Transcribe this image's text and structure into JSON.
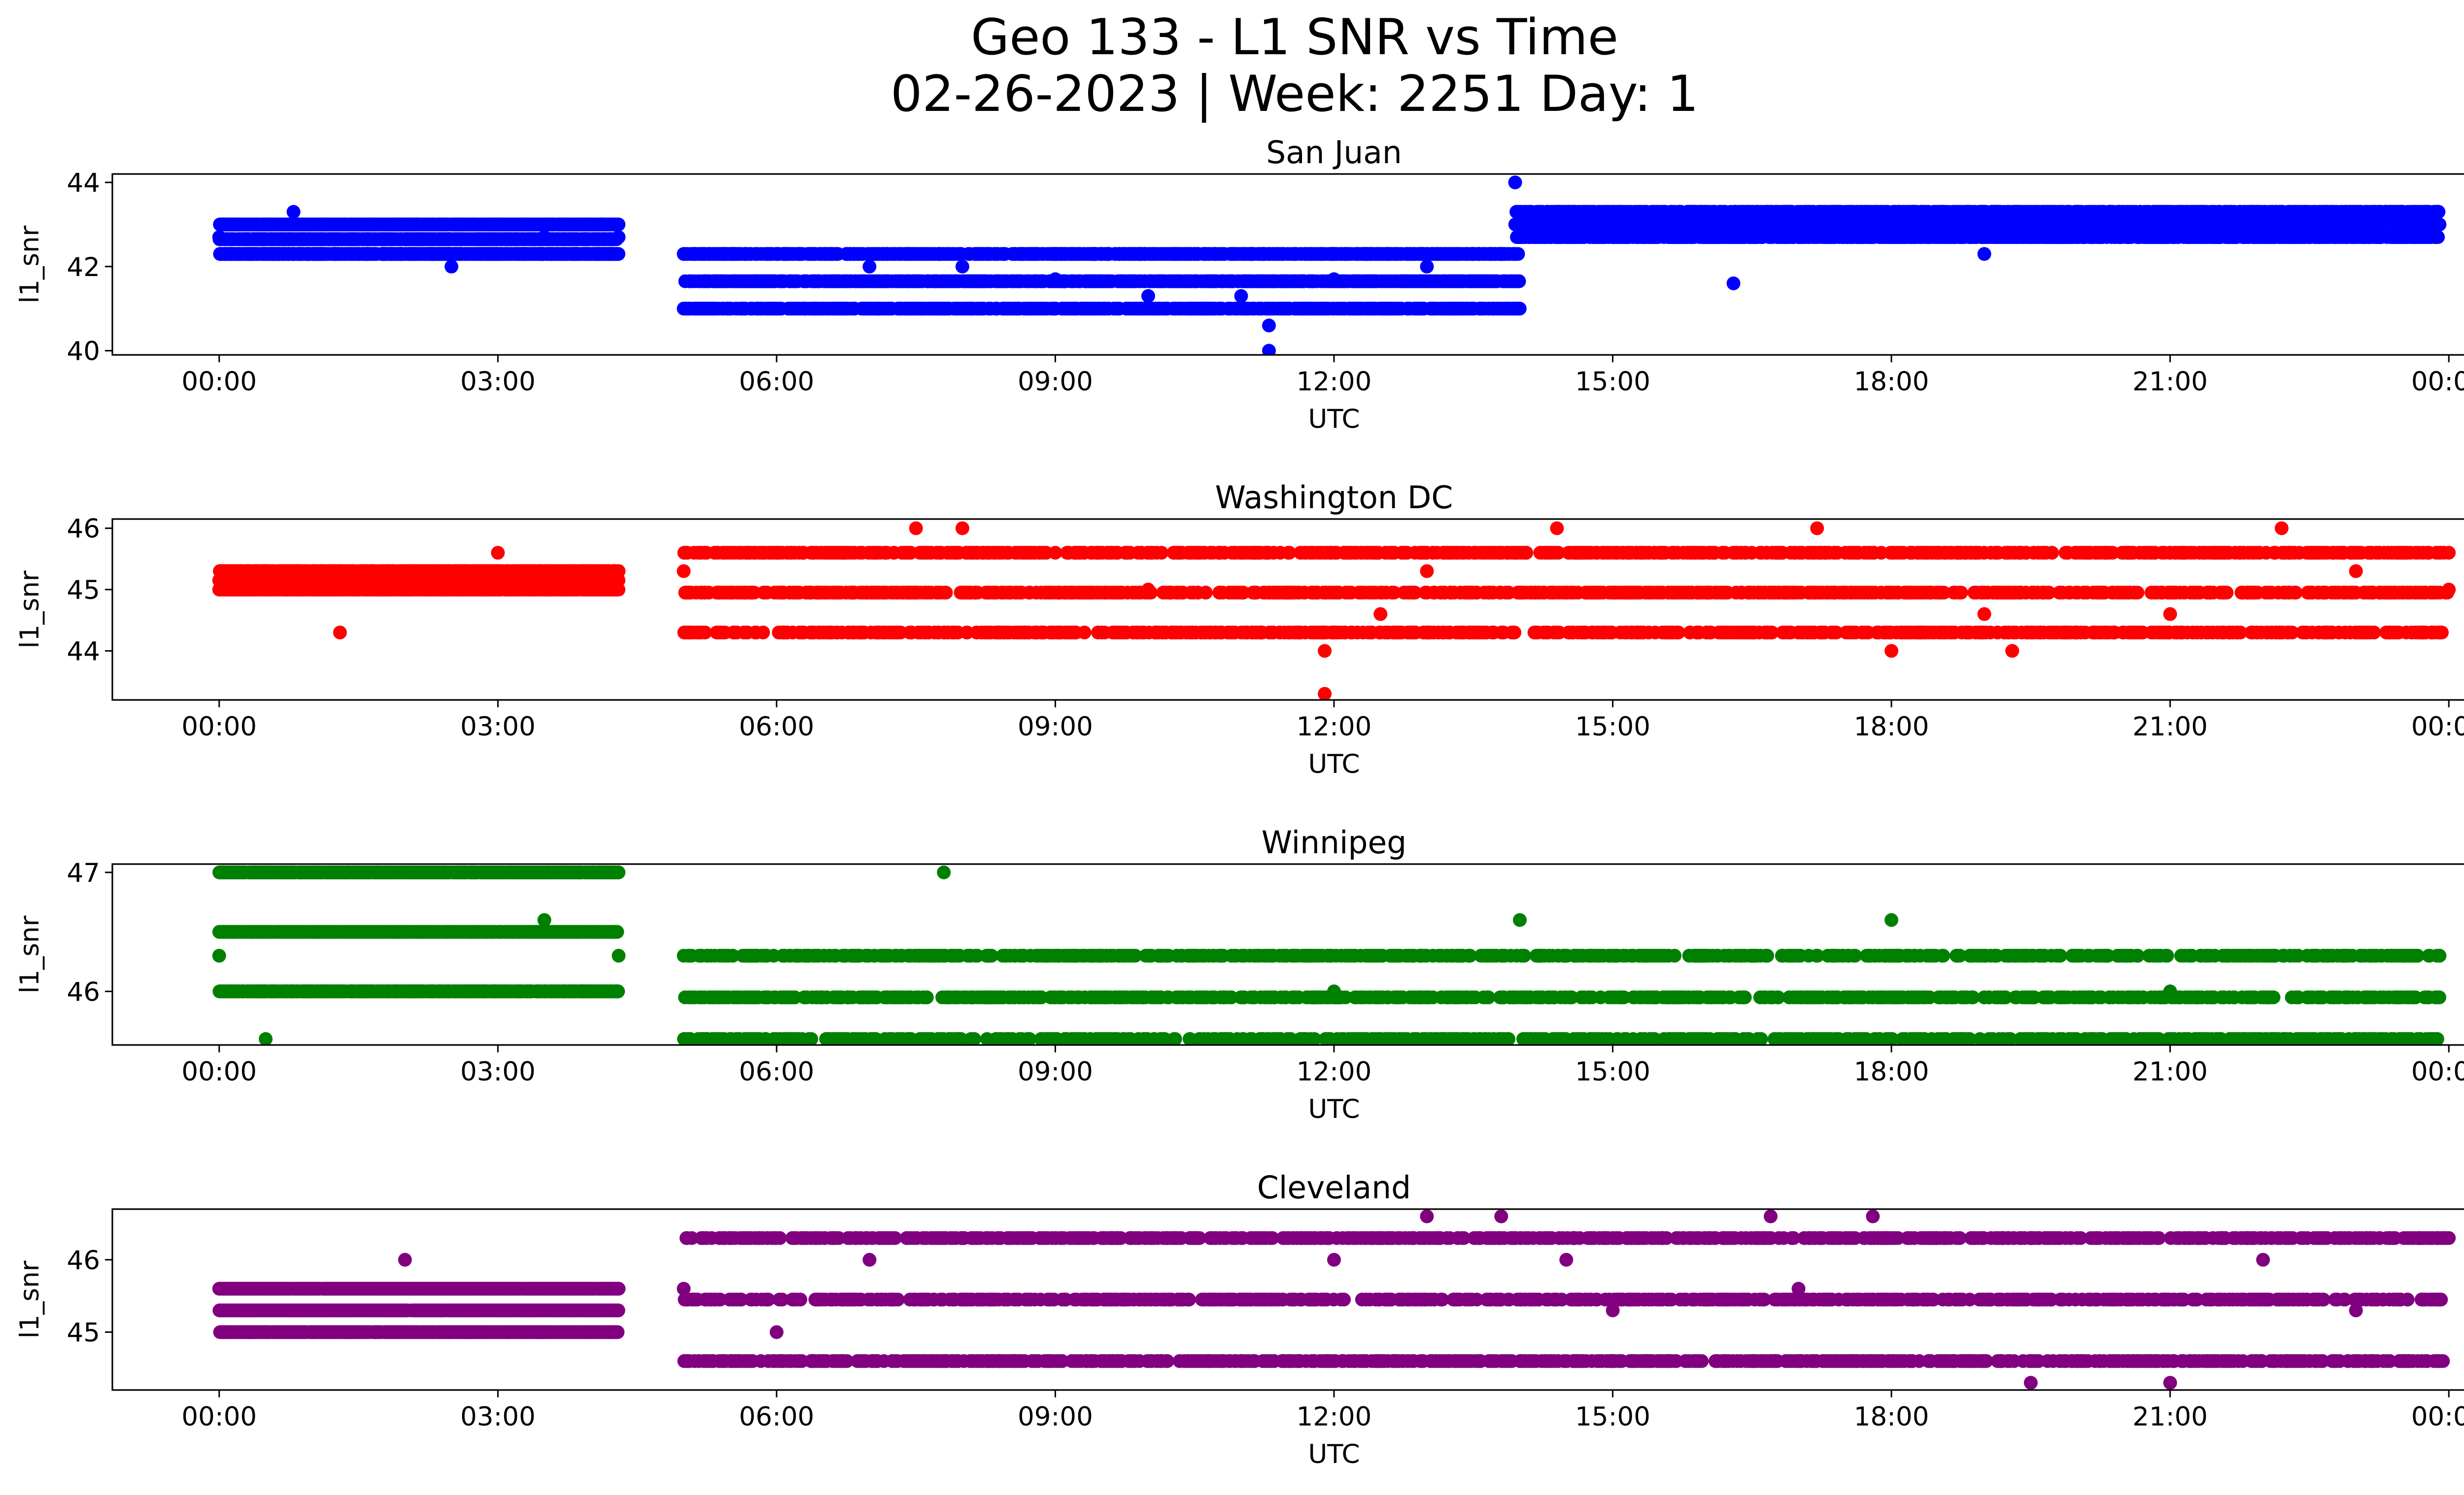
{
  "figure": {
    "title_line1": "Geo 133 - L1 SNR vs Time",
    "title_line2": "02-26-2023 | Week: 2251 Day: 1"
  },
  "chart_data": [
    {
      "type": "scatter",
      "title": "San Juan",
      "xlabel": "UTC",
      "ylabel": "l1_snr",
      "color": "#0000ff",
      "xticks": [
        "00:00",
        "03:00",
        "06:00",
        "09:00",
        "12:00",
        "15:00",
        "18:00",
        "21:00",
        "00:00"
      ],
      "xlim_hours": [
        -1.15,
        25.15
      ],
      "yticks": [
        40,
        42,
        44
      ],
      "ylim": [
        39.9,
        44.2
      ],
      "series": [
        {
          "x_hours": [
            0.0,
            0.5,
            0.8,
            1.3,
            2.0,
            2.5,
            3.0,
            3.5,
            4.3
          ],
          "y": [
            42.7,
            43.0,
            43.3,
            43.0,
            42.3,
            42.0,
            42.3,
            42.7,
            42.7
          ]
        },
        {
          "x_hours": [
            5.0,
            6.0,
            7.0,
            8.0,
            9.0,
            10.0,
            10.5,
            11.0,
            11.3,
            11.3,
            11.3,
            12.0,
            13.0,
            13.5,
            14.0
          ],
          "y": [
            42.3,
            42.3,
            42.0,
            42.0,
            41.7,
            41.3,
            41.0,
            41.3,
            41.0,
            40.6,
            40.0,
            41.7,
            42.0,
            42.3,
            42.7
          ]
        },
        {
          "x_hours": [
            13.95,
            15.0,
            15.5,
            16.3,
            17.0,
            18.0,
            19.0,
            20.0,
            21.0,
            22.0,
            23.0,
            23.9
          ],
          "y": [
            44.0,
            43.0,
            43.0,
            41.6,
            42.7,
            42.7,
            42.3,
            42.7,
            43.3,
            42.7,
            43.3,
            43.0
          ]
        }
      ]
    },
    {
      "type": "scatter",
      "title": "Washington DC",
      "xlabel": "UTC",
      "ylabel": "l1_snr",
      "color": "#ff0000",
      "xticks": [
        "00:00",
        "03:00",
        "06:00",
        "09:00",
        "12:00",
        "15:00",
        "18:00",
        "21:00",
        "00:00"
      ],
      "xlim_hours": [
        -1.15,
        25.15
      ],
      "yticks": [
        44,
        45,
        46
      ],
      "ylim": [
        43.2,
        46.15
      ],
      "series": [
        {
          "x_hours": [
            0.0,
            1.3,
            2.0,
            3.0,
            4.3
          ],
          "y": [
            45.0,
            44.3,
            45.3,
            45.6,
            45.3
          ]
        },
        {
          "x_hours": [
            5.0,
            6.0,
            7.5,
            8.0,
            9.0,
            10.0,
            11.0,
            11.9,
            11.9,
            12.5,
            13.0,
            14.4,
            15.0,
            16.3,
            17.2,
            18.0,
            19.0,
            19.3,
            20.0,
            21.0,
            22.2,
            23.0,
            24.0
          ],
          "y": [
            45.3,
            45.6,
            46.0,
            46.0,
            45.6,
            45.0,
            44.3,
            44.0,
            43.3,
            44.6,
            45.3,
            46.0,
            45.6,
            44.3,
            46.0,
            44.0,
            44.6,
            44.0,
            44.3,
            44.6,
            46.0,
            45.3,
            45.0
          ]
        }
      ]
    },
    {
      "type": "scatter",
      "title": "Winnipeg",
      "xlabel": "UTC",
      "ylabel": "l1_snr",
      "color": "#008000",
      "xticks": [
        "00:00",
        "03:00",
        "06:00",
        "09:00",
        "12:00",
        "15:00",
        "18:00",
        "21:00",
        "00:00"
      ],
      "xlim_hours": [
        -1.15,
        25.15
      ],
      "yticks": [
        46,
        47
      ],
      "ylim": [
        45.55,
        47.07
      ],
      "series": [
        {
          "x_hours": [
            0.0,
            0.5,
            1.5,
            2.3,
            3.0,
            3.5,
            4.3
          ],
          "y": [
            46.3,
            45.6,
            46.0,
            47.0,
            47.0,
            46.6,
            46.3
          ]
        },
        {
          "x_hours": [
            5.0,
            6.0,
            7.8,
            9.0,
            11.2,
            12.0,
            14.0,
            16.3,
            17.0,
            18.0,
            19.8,
            21.0,
            22.5,
            23.9
          ],
          "y": [
            46.3,
            45.6,
            47.0,
            45.6,
            45.6,
            46.0,
            46.6,
            45.6,
            46.3,
            46.6,
            45.6,
            46.0,
            45.6,
            46.3
          ]
        }
      ]
    },
    {
      "type": "scatter",
      "title": "Cleveland",
      "xlabel": "UTC",
      "ylabel": "l1_snr",
      "color": "#800080",
      "xticks": [
        "00:00",
        "03:00",
        "06:00",
        "09:00",
        "12:00",
        "15:00",
        "18:00",
        "21:00",
        "00:00"
      ],
      "xlim_hours": [
        -1.15,
        25.15
      ],
      "yticks": [
        45,
        46
      ],
      "ylim": [
        44.2,
        46.7
      ],
      "series": [
        {
          "x_hours": [
            0.0,
            0.6,
            1.0,
            2.0,
            3.0,
            4.3
          ],
          "y": [
            45.6,
            45.0,
            45.0,
            46.0,
            45.3,
            45.6
          ]
        },
        {
          "x_hours": [
            5.0,
            6.0,
            7.0,
            8.0,
            9.0,
            10.0,
            11.0,
            12.0,
            13.0,
            13.8,
            14.5,
            15.0,
            16.0,
            16.7,
            17.0,
            17.8,
            18.5,
            19.0,
            19.5,
            20.0,
            21.0,
            22.0,
            23.0,
            24.0
          ],
          "y": [
            45.6,
            45.0,
            46.0,
            46.3,
            46.3,
            44.6,
            44.6,
            46.0,
            46.6,
            46.6,
            46.0,
            45.3,
            46.3,
            46.6,
            45.6,
            46.6,
            44.6,
            44.6,
            44.3,
            44.6,
            44.3,
            46.0,
            45.3,
            46.3
          ]
        }
      ]
    }
  ]
}
